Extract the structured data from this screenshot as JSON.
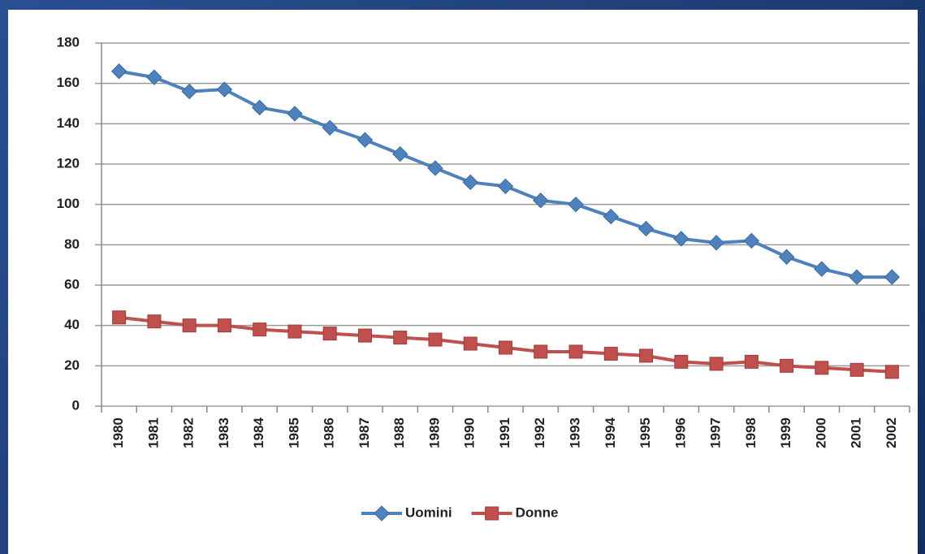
{
  "chart_data": {
    "type": "line",
    "categories": [
      "1980",
      "1981",
      "1982",
      "1983",
      "1984",
      "1985",
      "1986",
      "1987",
      "1988",
      "1989",
      "1990",
      "1991",
      "1992",
      "1993",
      "1994",
      "1995",
      "1996",
      "1997",
      "1998",
      "1999",
      "2000",
      "2001",
      "2002"
    ],
    "series": [
      {
        "name": "Uomini",
        "color": "#4f81bd",
        "marker": "diamond",
        "values": [
          166,
          163,
          156,
          157,
          148,
          145,
          138,
          132,
          125,
          118,
          111,
          109,
          102,
          100,
          94,
          88,
          83,
          81,
          82,
          74,
          68,
          64,
          64
        ]
      },
      {
        "name": "Donne",
        "color": "#c0504d",
        "marker": "square",
        "values": [
          44,
          42,
          40,
          40,
          38,
          37,
          36,
          35,
          34,
          33,
          31,
          29,
          27,
          27,
          26,
          25,
          22,
          21,
          22,
          20,
          19,
          18,
          17
        ]
      }
    ],
    "ylim": [
      0,
      180
    ],
    "yticks": [
      0,
      20,
      40,
      60,
      80,
      100,
      120,
      140,
      160,
      180
    ],
    "grid": true,
    "legend": "bottom"
  }
}
